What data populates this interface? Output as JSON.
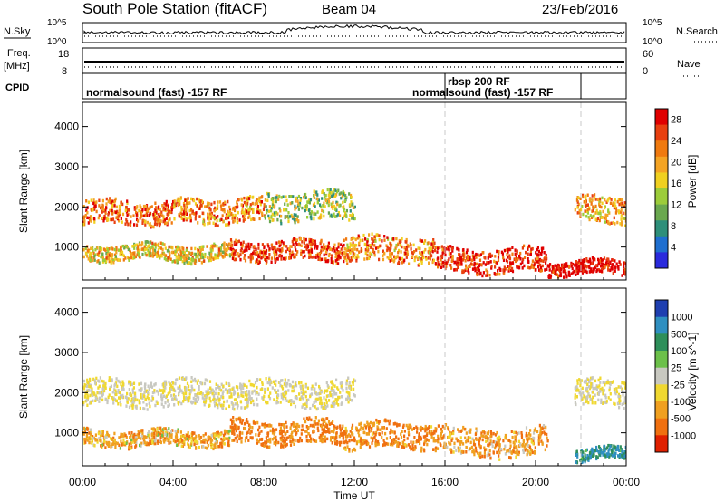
{
  "header": {
    "title": "South Pole Station (fitACF)",
    "beam": "Beam 04",
    "date": "23/Feb/2016"
  },
  "status_panel": {
    "nsky_label": "N.Sky",
    "nsearch_label": "N.Search",
    "noise_tick_top": "10^5",
    "noise_tick_bottom": "10^0",
    "freq_label_line1": "Freq.",
    "freq_label_line2": "[MHz]",
    "freq_ticks": [
      "18",
      "8"
    ],
    "nave_label": "Nave",
    "nave_ticks": [
      "60",
      "0"
    ],
    "cpid_label": "CPID",
    "cpid_segments": [
      {
        "label": "normalsound (fast) -157 RF",
        "start_hour": 0
      },
      {
        "label": "rbsp 200 RF",
        "start_hour": 16
      },
      {
        "label": "normalsound (fast) -157 RF",
        "start_hour": 22
      }
    ]
  },
  "chart_data": [
    {
      "type": "heatmap",
      "panel": "power",
      "ylabel": "Slant Range [km]",
      "ylim": [
        180,
        4600
      ],
      "yticks": [
        1000,
        2000,
        3000,
        4000
      ],
      "xlabel": "Time UT",
      "xlim_hours": [
        0,
        24
      ],
      "xtick_labels": [
        "00:00",
        "04:00",
        "08:00",
        "12:00",
        "16:00",
        "20:00",
        "00:00"
      ],
      "colorbar": {
        "label": "Power [dB]",
        "ticks": [
          "4",
          "8",
          "12",
          "16",
          "20",
          "24",
          "28"
        ],
        "colors": [
          "#2a2adc",
          "#1f6fd0",
          "#2e8f7a",
          "#6aa84f",
          "#9ccc3a",
          "#f0d020",
          "#f4a424",
          "#f07a10",
          "#e84010",
          "#e00000"
        ]
      },
      "echo_bands": [
        {
          "t0": 0.0,
          "t1": 4.0,
          "range_km": [
            1550,
            2150
          ],
          "power_db": 22
        },
        {
          "t0": 4.0,
          "t1": 8.0,
          "range_km": [
            1600,
            2200
          ],
          "power_db": 20
        },
        {
          "t0": 8.0,
          "t1": 12.0,
          "range_km": [
            1650,
            2350
          ],
          "power_db": 12
        },
        {
          "t0": 0.0,
          "t1": 6.5,
          "range_km": [
            650,
            1050
          ],
          "power_db": 16
        },
        {
          "t0": 6.5,
          "t1": 11.5,
          "range_km": [
            650,
            1150
          ],
          "power_db": 24
        },
        {
          "t0": 11.5,
          "t1": 15.5,
          "range_km": [
            600,
            1250
          ],
          "power_db": 20
        },
        {
          "t0": 15.5,
          "t1": 20.5,
          "range_km": [
            350,
            950
          ],
          "power_db": 26
        },
        {
          "t0": 20.5,
          "t1": 24.0,
          "range_km": [
            300,
            650
          ],
          "power_db": 28
        },
        {
          "t0": 21.7,
          "t1": 24.0,
          "range_km": [
            1600,
            2250
          ],
          "power_db": 18
        }
      ]
    },
    {
      "type": "heatmap",
      "panel": "velocity",
      "ylabel": "Slant Range [km]",
      "ylim": [
        180,
        4600
      ],
      "yticks": [
        1000,
        2000,
        3000,
        4000
      ],
      "xlabel": "Time UT",
      "xlim_hours": [
        0,
        24
      ],
      "xtick_labels": [
        "00:00",
        "04:00",
        "08:00",
        "12:00",
        "16:00",
        "20:00",
        "00:00"
      ],
      "colorbar": {
        "label": "Velocity [m s^-1]",
        "ticks": [
          "1000",
          "500",
          "100",
          "25",
          "-25",
          "-100",
          "-500",
          "-1000"
        ],
        "colors": [
          "#1f3fb0",
          "#2f8fc0",
          "#2e8f5a",
          "#6cc04a",
          "#c8c8c0",
          "#f0d830",
          "#f0a020",
          "#f07010",
          "#e02000"
        ]
      },
      "echo_bands": [
        {
          "t0": 0.0,
          "t1": 12.0,
          "range_km": [
            1650,
            2300
          ],
          "velocity_ms": 0
        },
        {
          "t0": 21.7,
          "t1": 24.0,
          "range_km": [
            1650,
            2300
          ],
          "velocity_ms": 0
        },
        {
          "t0": 0.0,
          "t1": 6.5,
          "range_km": [
            650,
            1050
          ],
          "velocity_ms": -150
        },
        {
          "t0": 6.5,
          "t1": 11.5,
          "range_km": [
            700,
            1300
          ],
          "velocity_ms": -400
        },
        {
          "t0": 11.5,
          "t1": 16.0,
          "range_km": [
            600,
            1250
          ],
          "velocity_ms": -300
        },
        {
          "t0": 16.0,
          "t1": 20.5,
          "range_km": [
            400,
            1100
          ],
          "velocity_ms": -200
        },
        {
          "t0": 21.7,
          "t1": 24.0,
          "range_km": [
            300,
            600
          ],
          "velocity_ms": 400
        }
      ]
    }
  ]
}
